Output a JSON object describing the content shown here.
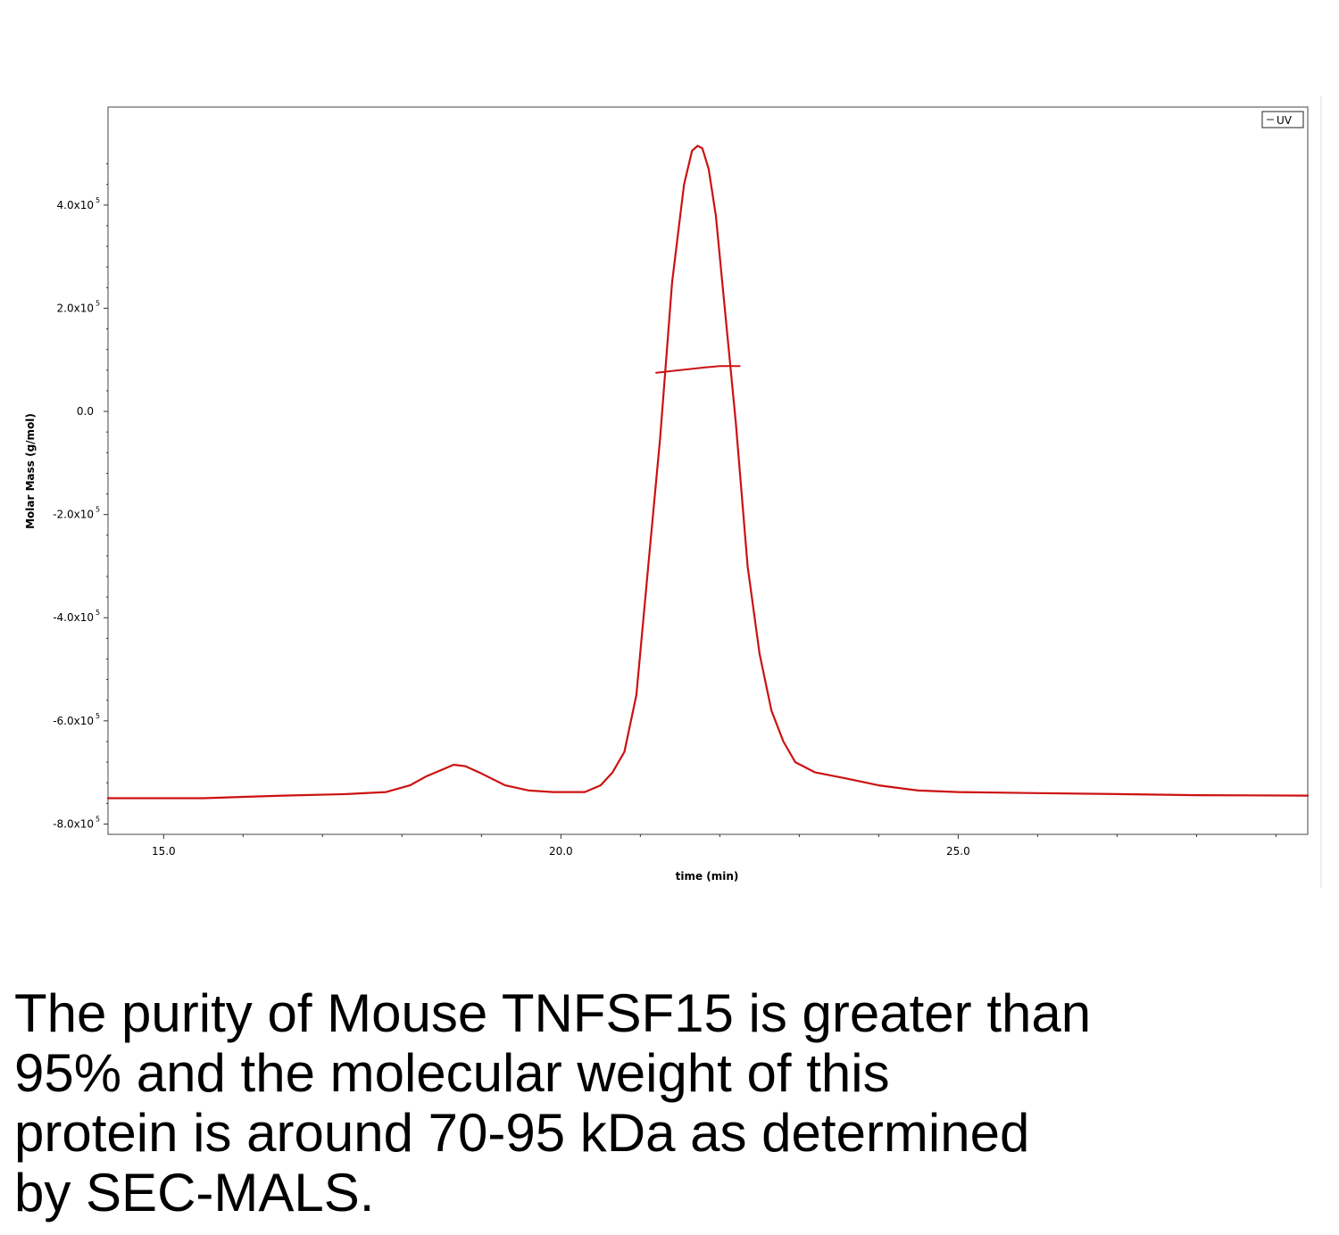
{
  "chart_data": {
    "type": "line",
    "title": "",
    "xlabel": "time (min)",
    "ylabel": "Molar Mass (g/mol)",
    "xlim": [
      14.3,
      29.4
    ],
    "ylim": [
      -820000,
      590000
    ],
    "x_ticks": [
      {
        "value": 15.0,
        "label": "15.0"
      },
      {
        "value": 20.0,
        "label": "20.0"
      },
      {
        "value": 25.0,
        "label": "25.0"
      }
    ],
    "y_ticks": [
      {
        "value": 400000,
        "mantissa": "4.0x10",
        "exp": "5"
      },
      {
        "value": 200000,
        "mantissa": "2.0x10",
        "exp": "5"
      },
      {
        "value": 0,
        "mantissa": "0.0",
        "exp": ""
      },
      {
        "value": -200000,
        "mantissa": "-2.0x10",
        "exp": "5"
      },
      {
        "value": -400000,
        "mantissa": "-4.0x10",
        "exp": "5"
      },
      {
        "value": -600000,
        "mantissa": "-6.0x10",
        "exp": "5"
      },
      {
        "value": -800000,
        "mantissa": "-8.0x10",
        "exp": "5"
      }
    ],
    "legend": {
      "label": "UV",
      "position": "top-right"
    },
    "color": "#cc1111",
    "series": [
      {
        "name": "UV",
        "x": [
          14.3,
          15.5,
          16.5,
          17.3,
          17.8,
          18.1,
          18.3,
          18.5,
          18.65,
          18.8,
          19.0,
          19.3,
          19.6,
          19.9,
          20.3,
          20.5,
          20.65,
          20.8,
          20.95,
          21.1,
          21.25,
          21.4,
          21.55,
          21.65,
          21.72,
          21.78,
          21.86,
          21.95,
          22.05,
          22.2,
          22.35,
          22.5,
          22.65,
          22.8,
          22.95,
          23.2,
          23.6,
          24.0,
          24.5,
          25.0,
          26.0,
          27.0,
          28.0,
          29.4
        ],
        "y": [
          -750000,
          -750000,
          -745000,
          -742000,
          -738000,
          -725000,
          -708000,
          -695000,
          -685000,
          -688000,
          -702000,
          -725000,
          -735000,
          -738000,
          -738000,
          -725000,
          -700000,
          -660000,
          -550000,
          -300000,
          -50000,
          250000,
          440000,
          505000,
          515000,
          510000,
          470000,
          380000,
          220000,
          -20000,
          -300000,
          -470000,
          -580000,
          -640000,
          -680000,
          -700000,
          -712000,
          -725000,
          -735000,
          -738000,
          -740000,
          -742000,
          -744000,
          -745000
        ]
      },
      {
        "name": "Molar Mass",
        "x": [
          21.2,
          21.5,
          21.8,
          22.0,
          22.25
        ],
        "y": [
          75000,
          80000,
          85000,
          88000,
          88000
        ]
      }
    ]
  },
  "caption": {
    "lines": [
      "The purity of Mouse TNFSF15 is greater than",
      "95% and the molecular weight of this",
      "protein is around 70-95 kDa as determined",
      "by SEC-MALS."
    ]
  }
}
